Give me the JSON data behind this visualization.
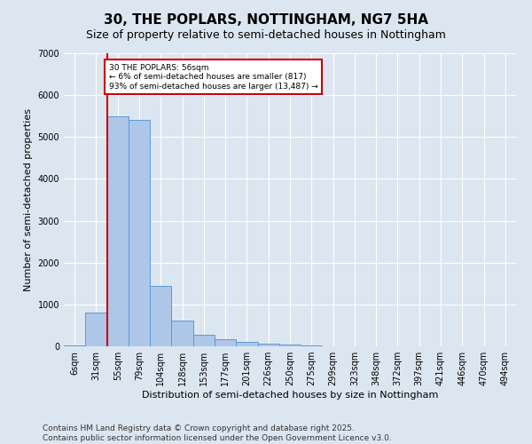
{
  "title": "30, THE POPLARS, NOTTINGHAM, NG7 5HA",
  "subtitle": "Size of property relative to semi-detached houses in Nottingham",
  "xlabel": "Distribution of semi-detached houses by size in Nottingham",
  "ylabel": "Number of semi-detached properties",
  "categories": [
    "6sqm",
    "31sqm",
    "55sqm",
    "79sqm",
    "104sqm",
    "128sqm",
    "153sqm",
    "177sqm",
    "201sqm",
    "226sqm",
    "250sqm",
    "275sqm",
    "299sqm",
    "323sqm",
    "348sqm",
    "372sqm",
    "397sqm",
    "421sqm",
    "446sqm",
    "470sqm",
    "494sqm"
  ],
  "values": [
    30,
    800,
    5500,
    5400,
    1450,
    620,
    270,
    160,
    100,
    65,
    50,
    30,
    5,
    2,
    1,
    0,
    0,
    0,
    0,
    0,
    0
  ],
  "bar_color": "#aec6e8",
  "bar_edge_color": "#5b9bd5",
  "property_line_color": "#cc0000",
  "annotation_text": "30 THE POPLARS: 56sqm\n← 6% of semi-detached houses are smaller (817)\n93% of semi-detached houses are larger (13,487) →",
  "annotation_box_color": "#cc0000",
  "ylim": [
    0,
    7000
  ],
  "yticks": [
    0,
    1000,
    2000,
    3000,
    4000,
    5000,
    6000,
    7000
  ],
  "background_color": "#dce6f1",
  "footer_text": "Contains HM Land Registry data © Crown copyright and database right 2025.\nContains public sector information licensed under the Open Government Licence v3.0.",
  "title_fontsize": 11,
  "subtitle_fontsize": 9,
  "axis_label_fontsize": 8,
  "tick_fontsize": 7,
  "footer_fontsize": 6.5
}
